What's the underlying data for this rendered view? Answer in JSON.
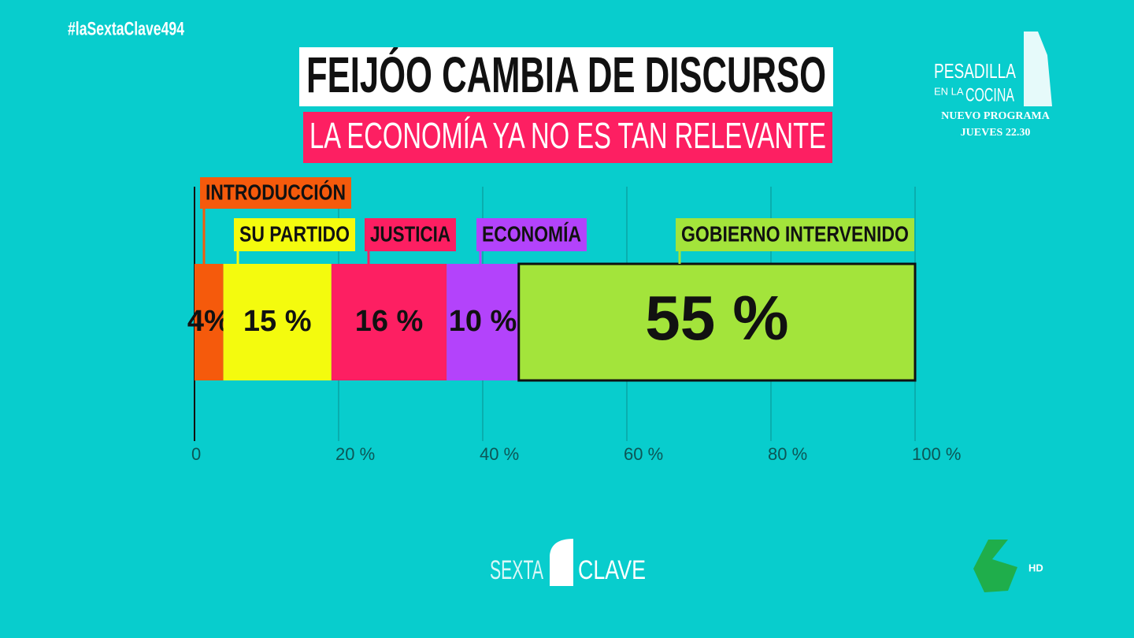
{
  "chart_data": {
    "type": "stacked-bar",
    "title": "FEIJÓO CAMBIA DE DISCURSO",
    "subtitle": "LA ECONOMÍA YA NO ES TAN RELEVANTE",
    "series": [
      {
        "name": "INTRODUCCIÓN",
        "color": "#f55a0c",
        "values": [
          4
        ],
        "value_labels": [
          "4%"
        ]
      },
      {
        "name": "SU PARTIDO",
        "color": "#f4fb0e",
        "values": [
          15
        ],
        "value_labels": [
          "15 %"
        ]
      },
      {
        "name": "JUSTICIA",
        "color": "#fd1f62",
        "values": [
          16
        ],
        "value_labels": [
          "16 %"
        ]
      },
      {
        "name": "ECONOMÍA",
        "color": "#b343fb",
        "values": [
          10
        ],
        "value_labels": [
          "10 %"
        ]
      },
      {
        "name": "GOBIERNO INTERVENIDO",
        "color": "#a3e43b",
        "values": [
          55
        ],
        "value_labels": [
          "55 %"
        ]
      }
    ],
    "xlim": [
      0,
      100
    ],
    "xticks": [
      0,
      {
        "value": 20,
        "label": "20 %"
      },
      {
        "value": 40,
        "label": "40 %"
      },
      {
        "value": 60,
        "label": "60 %"
      },
      {
        "value": 80,
        "label": "80 %"
      },
      {
        "value": 100,
        "label": "100 %"
      }
    ],
    "grid": true
  },
  "overlay": {
    "hashtag": "#laSextaClave494",
    "promo": {
      "show_top": "PESADILLA",
      "show_mid": "EN LA",
      "show_bottom": "COCINA",
      "line1": "NUEVO PROGRAMA",
      "line2": "JUEVES 22.30"
    },
    "program_left": "SEXTA",
    "program_right": "CLAVE",
    "channel_quality": "HD"
  }
}
